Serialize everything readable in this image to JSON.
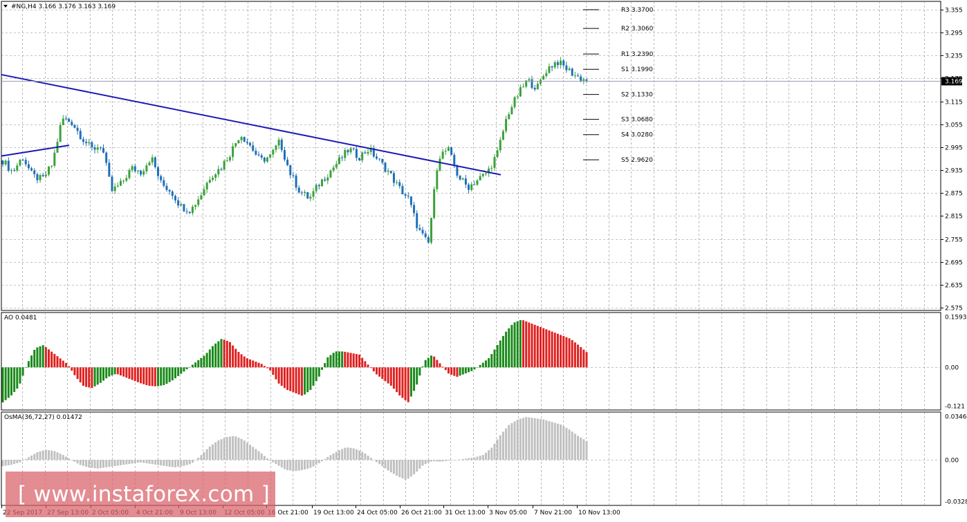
{
  "header": {
    "symbol": "#NG,H4",
    "ohlc": "3.166 3.176 3.163 3.169"
  },
  "price_tag": "3.169",
  "colors": {
    "bull_candle": "#3aa13a",
    "bear_candle": "#1f6fb8",
    "trendline": "#1a1ab4",
    "ao_up": "#1a8a1a",
    "ao_down": "#e02020",
    "osma": "#c0c0c0",
    "grid": "#8a8a8a",
    "watermark": "#d86068"
  },
  "pivot_levels": [
    {
      "label": "R3 3.3700",
      "value": 3.37,
      "y": 3.355
    },
    {
      "label": "R2 3.3060",
      "value": 3.306,
      "y": 3.306
    },
    {
      "label": "R1 3.2390",
      "value": 3.239,
      "y": 3.239
    },
    {
      "label": "S1 3.1990",
      "value": 3.199,
      "y": 3.199
    },
    {
      "label": "S2 3.1330",
      "value": 3.133,
      "y": 3.133
    },
    {
      "label": "S3 3.0680",
      "value": 3.068,
      "y": 3.068
    },
    {
      "label": "S4 3.0280",
      "value": 3.028,
      "y": 3.028
    },
    {
      "label": "S5 2.9620",
      "value": 2.962,
      "y": 2.962
    }
  ],
  "watermark": {
    "text": "[ www.instaforex.com ]"
  },
  "chart_data": [
    {
      "type": "candlestick",
      "title": "#NG,H4",
      "x_ticks": [
        "22 Sep 2017",
        "27 Sep 13:00",
        "2 Oct 05:00",
        "4 Oct 21:00",
        "9 Oct 13:00",
        "12 Oct 05:00",
        "16 Oct 21:00",
        "19 Oct 13:00",
        "24 Oct 05:00",
        "26 Oct 21:00",
        "31 Oct 13:00",
        "3 Nov 05:00",
        "7 Nov 21:00",
        "10 Nov 13:00"
      ],
      "y_ticks": [
        "3.355",
        "3.295",
        "3.235",
        "3.175",
        "3.115",
        "3.055",
        "2.995",
        "2.935",
        "2.875",
        "2.815",
        "2.755",
        "2.695",
        "2.635",
        "2.575"
      ],
      "ylim": [
        2.575,
        3.355
      ],
      "last_price": 3.169,
      "close_path": [
        2.96,
        2.93,
        2.97,
        2.92,
        2.91,
        2.95,
        3.07,
        3.06,
        3.02,
        2.99,
        3.0,
        2.88,
        2.9,
        2.94,
        2.93,
        2.97,
        2.9,
        2.88,
        2.84,
        2.83,
        2.87,
        2.92,
        2.94,
        2.98,
        3.03,
        3.0,
        2.96,
        2.97,
        3.01,
        2.93,
        2.88,
        2.86,
        2.9,
        2.93,
        2.96,
        2.99,
        2.97,
        2.99,
        2.96,
        2.93,
        2.89,
        2.86,
        2.78,
        2.74,
        2.97,
        2.99,
        2.92,
        2.89,
        2.91,
        2.93,
        2.98,
        3.08,
        3.13,
        3.17,
        3.15,
        3.2,
        3.22,
        3.2,
        3.18,
        3.169
      ]
    },
    {
      "type": "bar",
      "title": "AO 0.0481",
      "value": 0.0481,
      "y_ticks": [
        "0.1593",
        "0.00",
        "-0.121"
      ],
      "ylim": [
        -0.121,
        0.1593
      ],
      "values": [
        -0.11,
        -0.09,
        -0.06,
        0.01,
        0.06,
        0.07,
        0.05,
        0.03,
        0.01,
        -0.03,
        -0.06,
        -0.065,
        -0.05,
        -0.03,
        -0.02,
        -0.03,
        -0.04,
        -0.05,
        -0.058,
        -0.06,
        -0.055,
        -0.04,
        -0.02,
        0.0,
        0.02,
        0.04,
        0.07,
        0.09,
        0.08,
        0.05,
        0.03,
        0.02,
        0.01,
        -0.01,
        -0.05,
        -0.07,
        -0.08,
        -0.09,
        -0.07,
        -0.03,
        0.03,
        0.05,
        0.05,
        0.045,
        0.04,
        0.01,
        -0.02,
        -0.04,
        -0.06,
        -0.09,
        -0.11,
        -0.06,
        0.02,
        0.04,
        0.01,
        -0.02,
        -0.03,
        -0.02,
        -0.01,
        0.01,
        0.03,
        0.07,
        0.11,
        0.14,
        0.15,
        0.14,
        0.13,
        0.12,
        0.11,
        0.1,
        0.09,
        0.07,
        0.048
      ]
    },
    {
      "type": "bar",
      "title": "OsMA(36,72,27) 0.01472",
      "value": 0.01472,
      "y_ticks": [
        "0.0346",
        "0.00",
        "-0.03284"
      ],
      "ylim": [
        -0.03284,
        0.0346
      ],
      "values": [
        -0.005,
        -0.004,
        -0.002,
        0.002,
        0.006,
        0.008,
        0.007,
        0.004,
        0.0,
        -0.004,
        -0.006,
        -0.007,
        -0.006,
        -0.005,
        -0.004,
        -0.003,
        -0.002,
        -0.003,
        -0.004,
        -0.005,
        -0.006,
        -0.005,
        -0.003,
        0.003,
        0.01,
        0.015,
        0.018,
        0.019,
        0.016,
        0.011,
        0.006,
        0.0,
        -0.004,
        -0.008,
        -0.009,
        -0.008,
        -0.006,
        -0.002,
        0.003,
        0.007,
        0.01,
        0.009,
        0.006,
        0.001,
        -0.004,
        -0.009,
        -0.013,
        -0.016,
        -0.011,
        -0.004,
        -0.001,
        -0.0015,
        -0.0005,
        0.0,
        0.001,
        0.002,
        0.004,
        0.01,
        0.02,
        0.028,
        0.032,
        0.034,
        0.033,
        0.032,
        0.03,
        0.028,
        0.024,
        0.019,
        0.015
      ]
    }
  ]
}
